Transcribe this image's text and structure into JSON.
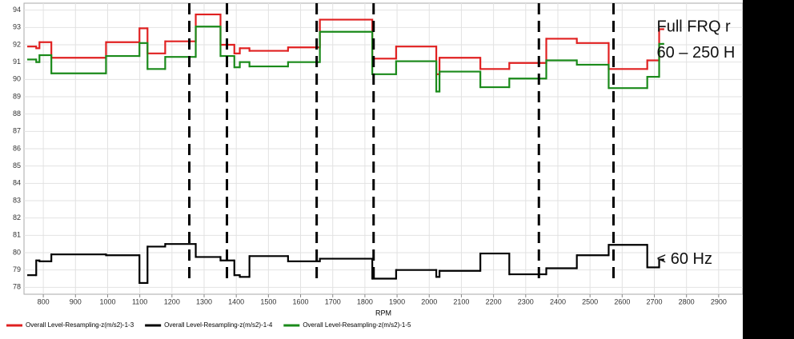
{
  "chart_data": {
    "type": "line",
    "drawstyle": "steps-post",
    "x_label": "RPM",
    "x": [
      750,
      778,
      788,
      825,
      995,
      1099,
      1124,
      1179,
      1274,
      1351,
      1394,
      1411,
      1441,
      1561,
      1660,
      1823,
      1897,
      2022,
      2032,
      2159,
      2249,
      2364,
      2459,
      2558,
      2678,
      2715,
      2728
    ],
    "series": [
      {
        "name": "Overall Level-Resampling-z(m/s2)-1-3",
        "color": "#e02020",
        "values": [
          91.9,
          91.8,
          92.15,
          91.25,
          92.15,
          92.95,
          91.5,
          92.2,
          93.75,
          92.0,
          91.5,
          91.8,
          91.65,
          91.85,
          93.45,
          91.2,
          91.9,
          90.3,
          91.25,
          90.6,
          90.95,
          92.35,
          92.1,
          90.6,
          91.1,
          92.9,
          92.9
        ]
      },
      {
        "name": "Overall Level-Resampling-z(m/s2)-1-4",
        "color": "#000000",
        "values": [
          78.7,
          79.55,
          79.5,
          79.9,
          79.85,
          78.25,
          80.35,
          80.5,
          79.75,
          79.55,
          78.7,
          78.6,
          79.8,
          79.5,
          79.65,
          78.5,
          79.0,
          78.6,
          78.95,
          79.95,
          78.75,
          79.1,
          79.85,
          80.45,
          79.15,
          79.6,
          79.6
        ]
      },
      {
        "name": "Overall Level-Resampling-z(m/s2)-1-5",
        "color": "#1a8a1a",
        "values": [
          91.15,
          91.0,
          91.4,
          90.35,
          91.35,
          92.1,
          90.6,
          91.3,
          93.05,
          91.35,
          90.7,
          91.0,
          90.75,
          91.0,
          92.75,
          90.3,
          91.05,
          89.3,
          90.45,
          89.55,
          90.05,
          91.1,
          90.85,
          89.5,
          90.15,
          92.05,
          92.05
        ]
      }
    ],
    "xlim": [
      740,
      2975
    ],
    "ylim": [
      77.6,
      94.4
    ],
    "xticks": [
      800,
      900,
      1000,
      1100,
      1200,
      1300,
      1400,
      1500,
      1600,
      1700,
      1800,
      1900,
      2000,
      2100,
      2200,
      2300,
      2400,
      2500,
      2600,
      2700,
      2800,
      2900
    ],
    "yticks": [
      78,
      79,
      80,
      81,
      82,
      83,
      84,
      85,
      86,
      87,
      88,
      89,
      90,
      91,
      92,
      93,
      94
    ],
    "grid": true,
    "vlines": [
      1254,
      1371,
      1650,
      1827,
      2341,
      2573
    ],
    "annotations": [
      {
        "text": "Full FRQ r",
        "x": 2700,
        "y": 93.0
      },
      {
        "text": "60 – 250 H",
        "x": 2700,
        "y": 91.5
      },
      {
        "text": "< 60 Hz",
        "x": 2700,
        "y": 79.6
      }
    ]
  }
}
